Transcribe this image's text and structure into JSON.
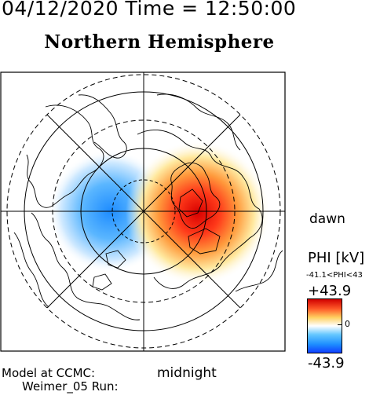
{
  "header": {
    "datetime": "04/12/2020 Time = 12:50:00"
  },
  "map": {
    "title": "Northern Hemisphere",
    "dawn_label": "dawn",
    "midnight_label": "midnight"
  },
  "colorbar": {
    "title": "PHI [kV]",
    "range_text": "-41.1<PHI<43",
    "max_label": "+43.9",
    "zero_label": "0",
    "min_label": "-43.9",
    "max_value": 43.9,
    "min_value": -43.9,
    "colors": {
      "max": "#d00000",
      "mid": "#ffffff",
      "min": "#1e90ff"
    }
  },
  "footer": {
    "model_line": "Model at CCMC:",
    "run_line": "Weimer_05 Run:"
  }
}
